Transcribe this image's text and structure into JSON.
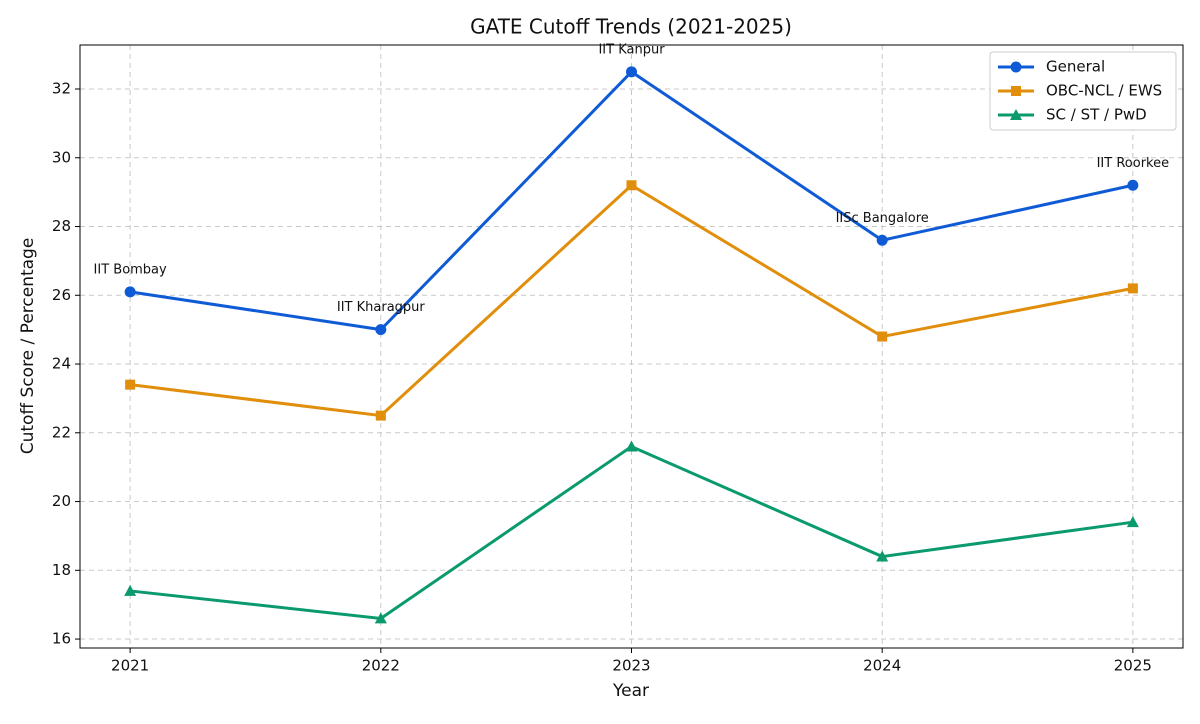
{
  "chart_data": {
    "type": "line",
    "title": "GATE Cutoff Trends (2021-2025)",
    "x_label": "Year",
    "y_label": "Cutoff Score / Percentage",
    "x": [
      2021,
      2022,
      2023,
      2024,
      2025
    ],
    "series": [
      {
        "name": "General",
        "color": "#0f5bd6",
        "marker": "circle",
        "values": [
          26.1,
          25.0,
          32.5,
          27.6,
          29.2
        ]
      },
      {
        "name": "OBC-NCL / EWS",
        "color": "#e08e0b",
        "marker": "square",
        "values": [
          23.4,
          22.5,
          29.2,
          24.8,
          26.2
        ]
      },
      {
        "name": "SC / ST / PwD",
        "color": "#0a9a6e",
        "marker": "triangle",
        "values": [
          17.4,
          16.6,
          21.6,
          18.4,
          19.4
        ]
      }
    ],
    "annotations": [
      "IIT Bombay",
      "IIT Kharagpur",
      "IIT Kanpur",
      "IISc Bangalore",
      "IIT Roorkee"
    ],
    "xlim": [
      2020.8,
      2025.2
    ],
    "xticks": [
      2021,
      2022,
      2023,
      2024,
      2025
    ],
    "ylim": [
      15.74,
      33.28
    ],
    "yticks": [
      16,
      18,
      20,
      22,
      24,
      26,
      28,
      30,
      32
    ],
    "grid": true,
    "legend": "upper right"
  }
}
